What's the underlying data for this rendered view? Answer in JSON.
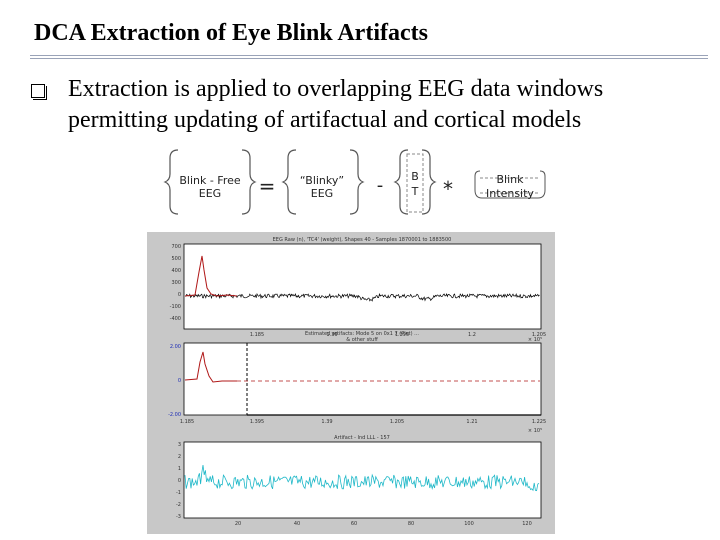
{
  "slide": {
    "title": "DCA Extraction of Eye Blink Artifacts",
    "bullet": "Extraction is applied to overlapping EEG data windows permitting updating of artifactual and cortical models"
  },
  "equation": {
    "term1": [
      "Blink - Free",
      "EEG"
    ],
    "eq": "=",
    "term2": [
      "“Blinky”",
      "EEG"
    ],
    "minus": "-",
    "term3": [
      "B",
      "T"
    ],
    "times": "*",
    "term4": [
      "Blink",
      "Intensity"
    ]
  },
  "figure": {
    "panel1": {
      "title": "EEG Raw (n), 'TC4' (weight), Shapes 40 - Samples 1870001 to 1883500",
      "yticks": [
        "700",
        "500",
        "400",
        "300",
        "0",
        "-100",
        "-400"
      ],
      "xticks": [
        "1.185",
        "1.39",
        "1.395",
        "1.2",
        "1.205"
      ],
      "exp": "× 10⁵"
    },
    "panel2": {
      "title": "Estimated artifacts: Mode 5 on 0x1 7 (Plot) ...",
      "subtitle": "& other stuff",
      "yticks": [
        "2.00",
        "0",
        "-2.00"
      ],
      "xticks": [
        "1.185",
        "1.395",
        "1.39",
        "1.205",
        "1.21",
        "1.225"
      ],
      "exp": "× 10⁵"
    },
    "panel3": {
      "title": "Artifact - Ind LLL - 157",
      "yticks": [
        "3",
        "2",
        "1",
        "0",
        "-1",
        "-2",
        "-3"
      ],
      "xticks": [
        "20",
        "40",
        "60",
        "80",
        "100",
        "120"
      ]
    }
  }
}
